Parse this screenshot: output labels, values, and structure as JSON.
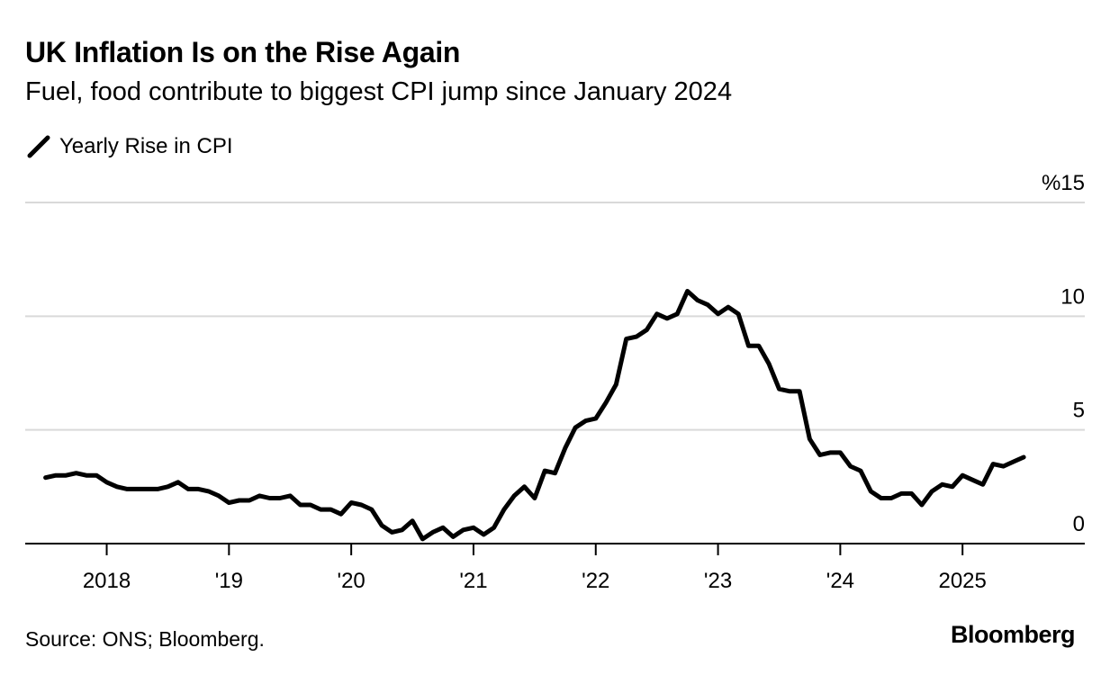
{
  "header": {
    "title": "UK Inflation Is on the Rise Again",
    "subtitle": "Fuel, food contribute to biggest CPI jump since January 2024"
  },
  "legend": {
    "label": "Yearly Rise in CPI"
  },
  "footer": {
    "source": "Source: ONS; Bloomberg.",
    "brand": "Bloomberg"
  },
  "colors": {
    "line": "#000000",
    "grid": "#d9d9d9",
    "axis": "#000000",
    "background": "#ffffff"
  },
  "chart_data": {
    "type": "line",
    "title": "UK Inflation Is on the Rise Again",
    "subtitle": "Fuel, food contribute to biggest CPI jump since January 2024",
    "xlabel": "",
    "ylabel": "",
    "ylim": [
      0,
      15
    ],
    "xlim": [
      "2017-05",
      "2026-01"
    ],
    "y_ticks": [
      {
        "value": 15,
        "label": "%15"
      },
      {
        "value": 10,
        "label": "10"
      },
      {
        "value": 5,
        "label": "5"
      },
      {
        "value": 0,
        "label": "0"
      }
    ],
    "x_ticks": [
      {
        "date": "2018-01",
        "label": "2018"
      },
      {
        "date": "2019-01",
        "label": "'19"
      },
      {
        "date": "2020-01",
        "label": "'20"
      },
      {
        "date": "2021-01",
        "label": "'21"
      },
      {
        "date": "2022-01",
        "label": "'22"
      },
      {
        "date": "2023-01",
        "label": "'23"
      },
      {
        "date": "2024-01",
        "label": "'24"
      },
      {
        "date": "2025-01",
        "label": "2025"
      }
    ],
    "grid": true,
    "legend_position": "top-left",
    "series": [
      {
        "name": "Yearly Rise in CPI",
        "x": [
          "2017-07",
          "2017-08",
          "2017-09",
          "2017-10",
          "2017-11",
          "2017-12",
          "2018-01",
          "2018-02",
          "2018-03",
          "2018-04",
          "2018-05",
          "2018-06",
          "2018-07",
          "2018-08",
          "2018-09",
          "2018-10",
          "2018-11",
          "2018-12",
          "2019-01",
          "2019-02",
          "2019-03",
          "2019-04",
          "2019-05",
          "2019-06",
          "2019-07",
          "2019-08",
          "2019-09",
          "2019-10",
          "2019-11",
          "2019-12",
          "2020-01",
          "2020-02",
          "2020-03",
          "2020-04",
          "2020-05",
          "2020-06",
          "2020-07",
          "2020-08",
          "2020-09",
          "2020-10",
          "2020-11",
          "2020-12",
          "2021-01",
          "2021-02",
          "2021-03",
          "2021-04",
          "2021-05",
          "2021-06",
          "2021-07",
          "2021-08",
          "2021-09",
          "2021-10",
          "2021-11",
          "2021-12",
          "2022-01",
          "2022-02",
          "2022-03",
          "2022-04",
          "2022-05",
          "2022-06",
          "2022-07",
          "2022-08",
          "2022-09",
          "2022-10",
          "2022-11",
          "2022-12",
          "2023-01",
          "2023-02",
          "2023-03",
          "2023-04",
          "2023-05",
          "2023-06",
          "2023-07",
          "2023-08",
          "2023-09",
          "2023-10",
          "2023-11",
          "2023-12",
          "2024-01",
          "2024-02",
          "2024-03",
          "2024-04",
          "2024-05",
          "2024-06",
          "2024-07",
          "2024-08",
          "2024-09",
          "2024-10",
          "2024-11",
          "2024-12",
          "2025-01",
          "2025-02",
          "2025-03",
          "2025-04",
          "2025-05",
          "2025-06",
          "2025-07"
        ],
        "values": [
          2.9,
          3.0,
          3.0,
          3.1,
          3.0,
          3.0,
          2.7,
          2.5,
          2.4,
          2.4,
          2.4,
          2.4,
          2.5,
          2.7,
          2.4,
          2.4,
          2.3,
          2.1,
          1.8,
          1.9,
          1.9,
          2.1,
          2.0,
          2.0,
          2.1,
          1.7,
          1.7,
          1.5,
          1.5,
          1.3,
          1.8,
          1.7,
          1.5,
          0.8,
          0.5,
          0.6,
          1.0,
          0.2,
          0.5,
          0.7,
          0.3,
          0.6,
          0.7,
          0.4,
          0.7,
          1.5,
          2.1,
          2.5,
          2.0,
          3.2,
          3.1,
          4.2,
          5.1,
          5.4,
          5.5,
          6.2,
          7.0,
          9.0,
          9.1,
          9.4,
          10.1,
          9.9,
          10.1,
          11.1,
          10.7,
          10.5,
          10.1,
          10.4,
          10.1,
          8.7,
          8.7,
          7.9,
          6.8,
          6.7,
          6.7,
          4.6,
          3.9,
          4.0,
          4.0,
          3.4,
          3.2,
          2.3,
          2.0,
          2.0,
          2.2,
          2.2,
          1.7,
          2.3,
          2.6,
          2.5,
          3.0,
          2.8,
          2.6,
          3.5,
          3.4,
          3.6,
          3.8
        ]
      }
    ]
  }
}
